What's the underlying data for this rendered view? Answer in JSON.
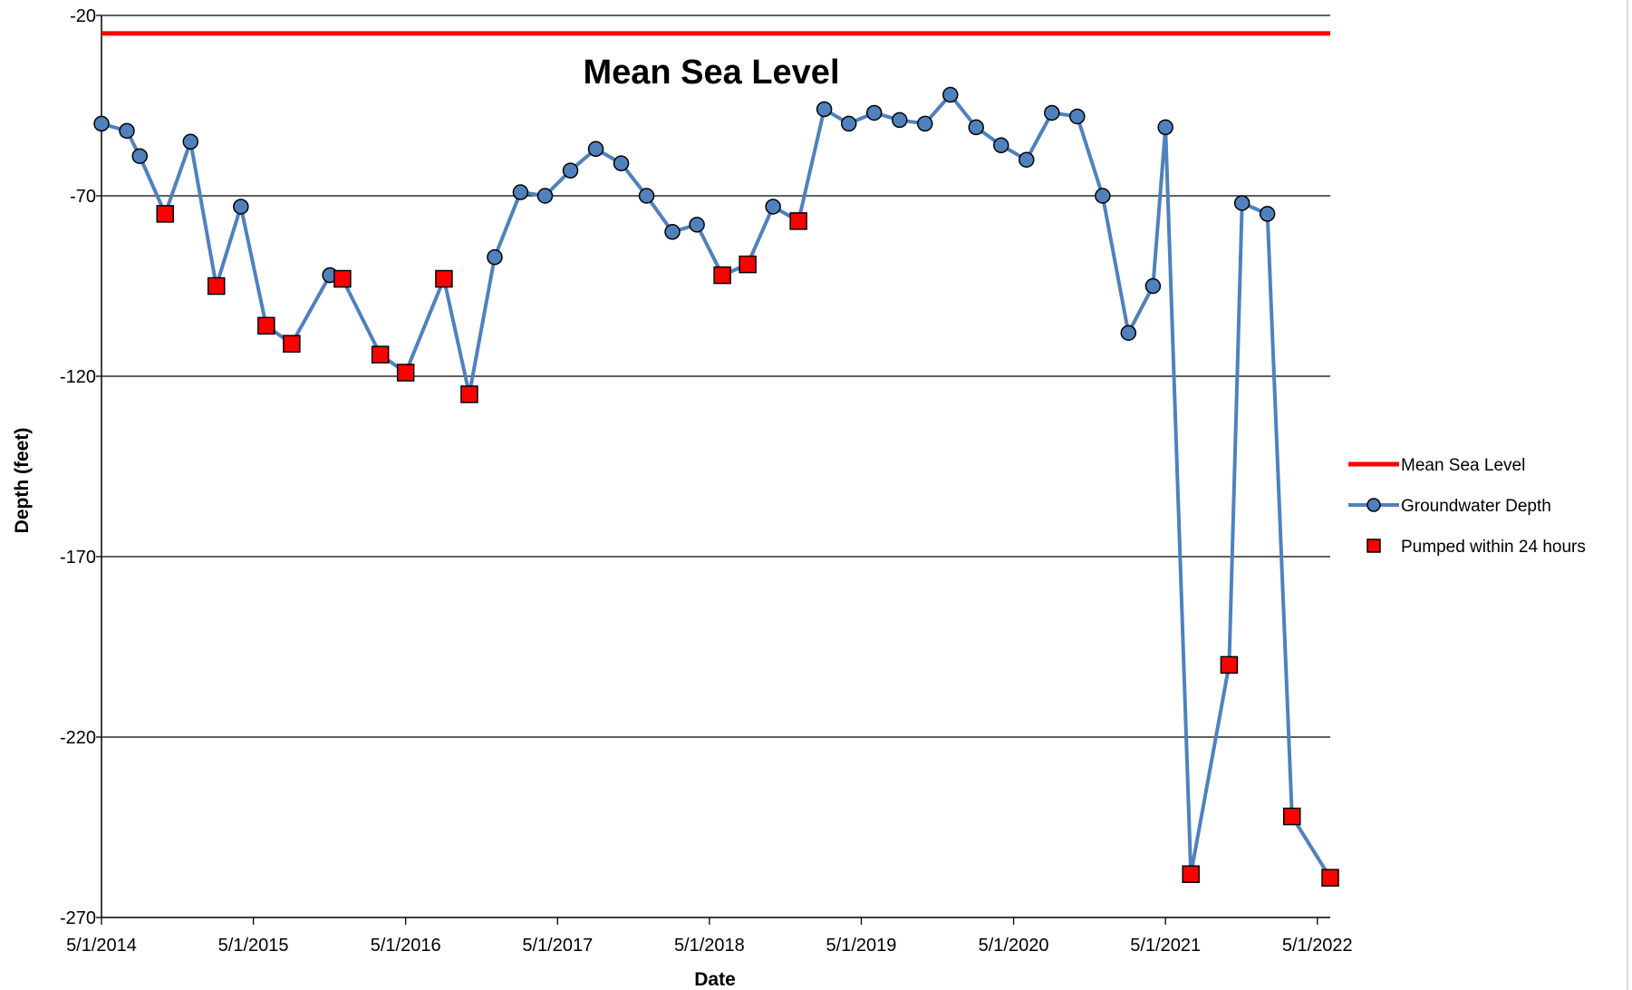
{
  "chart_data": {
    "type": "line",
    "xlabel": "Date",
    "ylabel": "Depth (feet)",
    "annotation": "Mean Sea Level",
    "ylim": [
      -270,
      -20
    ],
    "yticks": [
      -20,
      -70,
      -120,
      -170,
      -220,
      -270
    ],
    "xlim": [
      "2014-05-01",
      "2022-06-01"
    ],
    "xticks": [
      {
        "date": "2014-05-01",
        "label": "5/1/2014"
      },
      {
        "date": "2015-05-01",
        "label": "5/1/2015"
      },
      {
        "date": "2016-05-01",
        "label": "5/1/2016"
      },
      {
        "date": "2017-05-01",
        "label": "5/1/2017"
      },
      {
        "date": "2018-05-01",
        "label": "5/1/2018"
      },
      {
        "date": "2019-05-01",
        "label": "5/1/2019"
      },
      {
        "date": "2020-05-01",
        "label": "5/1/2020"
      },
      {
        "date": "2021-05-01",
        "label": "5/1/2021"
      },
      {
        "date": "2022-05-01",
        "label": "5/1/2022"
      }
    ],
    "grid": "horizontal",
    "legend_position": "right",
    "series": [
      {
        "name": "Mean Sea Level",
        "color": "#ff0000",
        "style": "line",
        "points": [
          [
            "2014-05-01",
            -25
          ],
          [
            "2022-06-01",
            -25
          ]
        ]
      },
      {
        "name": "Groundwater Depth",
        "color": "#4f81bd",
        "marker": "circle",
        "points": [
          [
            "2014-05-01",
            -50
          ],
          [
            "2014-07-01",
            -52
          ],
          [
            "2014-08-01",
            -59
          ],
          [
            "2014-10-01",
            -75
          ],
          [
            "2014-12-01",
            -55
          ],
          [
            "2015-02-01",
            -95
          ],
          [
            "2015-04-01",
            -73
          ],
          [
            "2015-06-01",
            -106
          ],
          [
            "2015-08-01",
            -111
          ],
          [
            "2015-11-01",
            -92
          ],
          [
            "2015-12-01",
            -93
          ],
          [
            "2016-03-01",
            -114
          ],
          [
            "2016-05-01",
            -119
          ],
          [
            "2016-08-01",
            -93
          ],
          [
            "2016-10-01",
            -125
          ],
          [
            "2016-12-01",
            -87
          ],
          [
            "2017-02-01",
            -69
          ],
          [
            "2017-04-01",
            -70
          ],
          [
            "2017-06-01",
            -63
          ],
          [
            "2017-08-01",
            -57
          ],
          [
            "2017-10-01",
            -61
          ],
          [
            "2017-12-01",
            -70
          ],
          [
            "2018-02-01",
            -80
          ],
          [
            "2018-04-01",
            -78
          ],
          [
            "2018-06-01",
            -92
          ],
          [
            "2018-08-01",
            -89
          ],
          [
            "2018-10-01",
            -73
          ],
          [
            "2018-12-01",
            -77
          ],
          [
            "2019-02-01",
            -46
          ],
          [
            "2019-04-01",
            -50
          ],
          [
            "2019-06-01",
            -47
          ],
          [
            "2019-08-01",
            -49
          ],
          [
            "2019-10-01",
            -50
          ],
          [
            "2019-12-01",
            -42
          ],
          [
            "2020-02-01",
            -51
          ],
          [
            "2020-04-01",
            -56
          ],
          [
            "2020-06-01",
            -60
          ],
          [
            "2020-08-01",
            -47
          ],
          [
            "2020-10-01",
            -48
          ],
          [
            "2020-12-01",
            -70
          ],
          [
            "2021-02-01",
            -108
          ],
          [
            "2021-04-01",
            -95
          ],
          [
            "2021-05-01",
            -51
          ],
          [
            "2021-07-01",
            -258
          ],
          [
            "2021-10-01",
            -200
          ],
          [
            "2021-11-01",
            -72
          ],
          [
            "2022-01-01",
            -75
          ],
          [
            "2022-03-01",
            -242
          ],
          [
            "2022-06-01",
            -259
          ]
        ]
      },
      {
        "name": "Pumped within 24 hours",
        "color": "#ff0000",
        "marker": "square",
        "points": [
          [
            "2014-10-01",
            -75
          ],
          [
            "2015-02-01",
            -95
          ],
          [
            "2015-06-01",
            -106
          ],
          [
            "2015-08-01",
            -111
          ],
          [
            "2015-12-01",
            -93
          ],
          [
            "2016-03-01",
            -114
          ],
          [
            "2016-05-01",
            -119
          ],
          [
            "2016-08-01",
            -93
          ],
          [
            "2016-10-01",
            -125
          ],
          [
            "2018-06-01",
            -92
          ],
          [
            "2018-08-01",
            -89
          ],
          [
            "2018-12-01",
            -77
          ],
          [
            "2021-07-01",
            -258
          ],
          [
            "2021-10-01",
            -200
          ],
          [
            "2022-03-01",
            -242
          ],
          [
            "2022-06-01",
            -259
          ]
        ]
      }
    ]
  }
}
